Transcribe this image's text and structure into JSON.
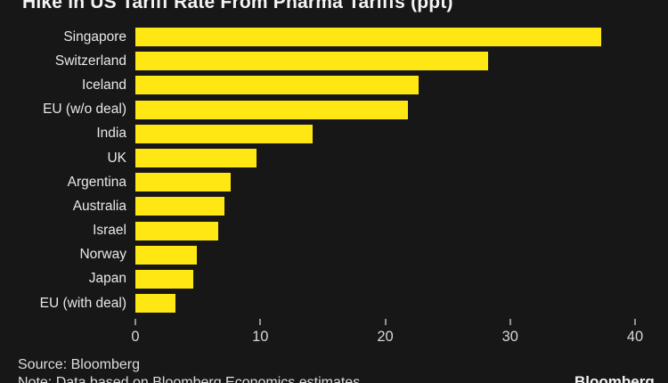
{
  "title": "Hike in US Tariff Rate From Pharma Tariffs (ppt)",
  "chart_data": {
    "type": "bar",
    "orientation": "horizontal",
    "title": "Hike in US Tariff Rate From Pharma Tariffs (ppt)",
    "categories": [
      "Singapore",
      "Switzerland",
      "Iceland",
      "EU (w/o deal)",
      "India",
      "UK",
      "Argentina",
      "Australia",
      "Israel",
      "Norway",
      "Japan",
      "EU (with deal)"
    ],
    "values": [
      37.3,
      28.2,
      22.7,
      21.8,
      14.2,
      9.7,
      7.6,
      7.1,
      6.6,
      4.9,
      4.6,
      3.2
    ],
    "xlabel": "",
    "ylabel": "",
    "xlim": [
      0,
      40
    ],
    "x_ticks": [
      0,
      10,
      20,
      30,
      40
    ],
    "grid": false,
    "legend_position": "none",
    "bar_color": "#ffe713"
  },
  "footer": {
    "source": "Source: Bloomberg",
    "note": "Note: Data based on Bloomberg Economics estimates",
    "brand": "Bloomberg"
  },
  "colors": {
    "background": "#171717",
    "bar": "#ffe713",
    "title_text": "#f4f4f4",
    "label_text": "#e8e8e8",
    "tick_text": "#d6d6d6",
    "tick_mark": "#919191",
    "footer_text": "#dedede"
  }
}
